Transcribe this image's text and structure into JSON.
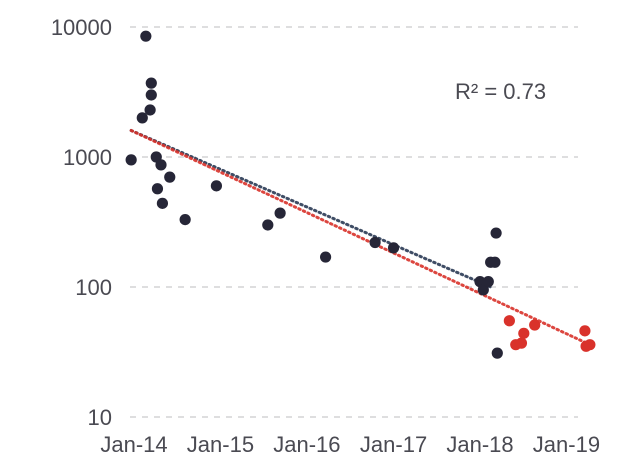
{
  "chart_data": {
    "type": "scatter",
    "title": "",
    "xlabel": "",
    "ylabel": "",
    "y_scale": "log",
    "ylim": [
      10,
      10000
    ],
    "xlim": [
      "2013-12-01",
      "2019-06-01"
    ],
    "grid": "horizontal dashed",
    "legend": "none",
    "y_ticks": [
      {
        "value": 10,
        "label": "10"
      },
      {
        "value": 100,
        "label": "100"
      },
      {
        "value": 1000,
        "label": "1000"
      },
      {
        "value": 10000,
        "label": "10000"
      }
    ],
    "x_ticks": [
      {
        "value": "2014-01-01",
        "label": "Jan-14"
      },
      {
        "value": "2015-01-01",
        "label": "Jan-15"
      },
      {
        "value": "2016-01-01",
        "label": "Jan-16"
      },
      {
        "value": "2017-01-01",
        "label": "Jan-17"
      },
      {
        "value": "2018-01-01",
        "label": "Jan-18"
      },
      {
        "value": "2019-01-01",
        "label": "Jan-19"
      }
    ],
    "annotation": "R² = 0.73",
    "series": [
      {
        "color": "#262637",
        "points": [
          {
            "x": "2013-12-20",
            "y": 950
          },
          {
            "x": "2014-02-05",
            "y": 2000
          },
          {
            "x": "2014-02-20",
            "y": 8500
          },
          {
            "x": "2014-03-10",
            "y": 2300
          },
          {
            "x": "2014-03-15",
            "y": 3000
          },
          {
            "x": "2014-03-15",
            "y": 3700
          },
          {
            "x": "2014-04-05",
            "y": 1000
          },
          {
            "x": "2014-04-10",
            "y": 570
          },
          {
            "x": "2014-04-25",
            "y": 870
          },
          {
            "x": "2014-05-01",
            "y": 440
          },
          {
            "x": "2014-06-01",
            "y": 700
          },
          {
            "x": "2014-08-05",
            "y": 330
          },
          {
            "x": "2014-12-15",
            "y": 600
          },
          {
            "x": "2015-07-20",
            "y": 300
          },
          {
            "x": "2015-09-10",
            "y": 370
          },
          {
            "x": "2016-03-20",
            "y": 170
          },
          {
            "x": "2016-10-15",
            "y": 220
          },
          {
            "x": "2017-01-01",
            "y": 200
          },
          {
            "x": "2018-01-01",
            "y": 110
          },
          {
            "x": "2018-01-15",
            "y": 95
          },
          {
            "x": "2018-02-05",
            "y": 110
          },
          {
            "x": "2018-02-15",
            "y": 155
          },
          {
            "x": "2018-03-05",
            "y": 155
          },
          {
            "x": "2018-03-10",
            "y": 260
          },
          {
            "x": "2018-03-15",
            "y": 31
          }
        ]
      },
      {
        "color": "#d9322b",
        "points": [
          {
            "x": "2018-05-05",
            "y": 55
          },
          {
            "x": "2018-06-01",
            "y": 36
          },
          {
            "x": "2018-06-25",
            "y": 37
          },
          {
            "x": "2018-07-05",
            "y": 44
          },
          {
            "x": "2018-08-20",
            "y": 51
          },
          {
            "x": "2019-03-20",
            "y": 46
          },
          {
            "x": "2019-03-25",
            "y": 35
          },
          {
            "x": "2019-04-10",
            "y": 36
          }
        ]
      }
    ],
    "trendlines": [
      {
        "color": "#2b3a55",
        "style": "dotted",
        "from": {
          "x": "2013-12-20",
          "y": 1600
        },
        "to": {
          "x": "2018-02-15",
          "y": 100
        }
      },
      {
        "color": "#d9322b",
        "style": "dotted",
        "from": {
          "x": "2013-12-20",
          "y": 1600
        },
        "to": {
          "x": "2019-04-10",
          "y": 36
        }
      }
    ]
  }
}
